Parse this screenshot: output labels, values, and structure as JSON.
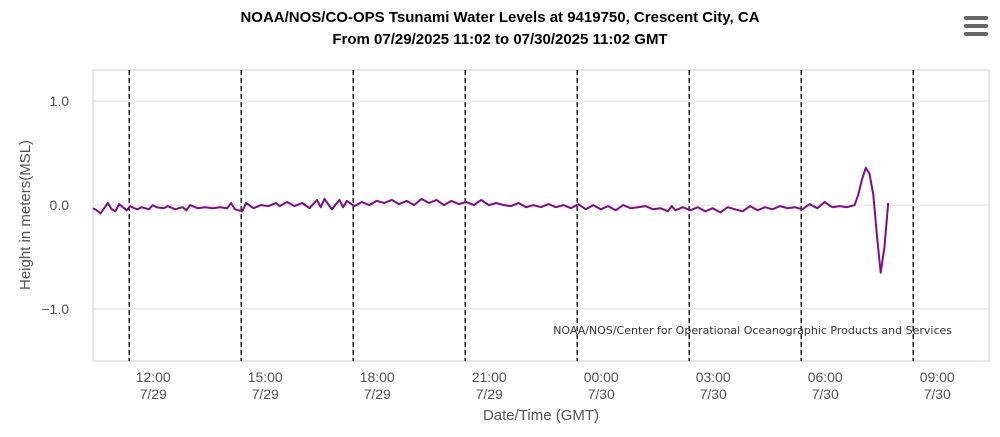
{
  "chart_data": {
    "type": "line",
    "title": "NOAA/NOS/CO-OPS Tsunami Water Levels at 9419750, Crescent City, CA",
    "subtitle": "From 07/29/2025 11:02 to 07/30/2025 11:02 GMT",
    "xlabel": "Date/Time (GMT)",
    "ylabel": "Height in meters(MSL)",
    "credit": "NOAA/NOS/Center for Operational Oceanographic Products and Services",
    "xlim_hours": [
      0,
      24
    ],
    "ylim": [
      -1.5,
      1.3
    ],
    "y_ticks": [
      {
        "value": 1.0,
        "label": "1.0"
      },
      {
        "value": 0.0,
        "label": "0.0"
      },
      {
        "value": -1.0,
        "label": "−1.0"
      }
    ],
    "x_ticks": [
      {
        "hour": 0.97,
        "time": "12:00",
        "date": "7/29"
      },
      {
        "hour": 3.97,
        "time": "15:00",
        "date": "7/29"
      },
      {
        "hour": 6.97,
        "time": "18:00",
        "date": "7/29"
      },
      {
        "hour": 9.97,
        "time": "21:00",
        "date": "7/29"
      },
      {
        "hour": 12.97,
        "time": "00:00",
        "date": "7/30"
      },
      {
        "hour": 15.97,
        "time": "03:00",
        "date": "7/30"
      },
      {
        "hour": 18.97,
        "time": "06:00",
        "date": "7/30"
      },
      {
        "hour": 21.97,
        "time": "09:00",
        "date": "7/30"
      }
    ],
    "series": [
      {
        "color": "#7b0f84",
        "points": [
          [
            0.0,
            -0.03
          ],
          [
            0.1,
            -0.05
          ],
          [
            0.2,
            -0.08
          ],
          [
            0.3,
            -0.03
          ],
          [
            0.4,
            0.02
          ],
          [
            0.5,
            -0.04
          ],
          [
            0.6,
            -0.06
          ],
          [
            0.7,
            0.01
          ],
          [
            0.8,
            -0.02
          ],
          [
            0.9,
            -0.05
          ],
          [
            1.0,
            -0.01
          ],
          [
            1.1,
            -0.03
          ],
          [
            1.2,
            -0.04
          ],
          [
            1.3,
            -0.02
          ],
          [
            1.5,
            -0.04
          ],
          [
            1.6,
            0.0
          ],
          [
            1.7,
            -0.02
          ],
          [
            1.9,
            -0.03
          ],
          [
            2.0,
            -0.01
          ],
          [
            2.2,
            -0.04
          ],
          [
            2.4,
            -0.02
          ],
          [
            2.5,
            -0.05
          ],
          [
            2.6,
            0.0
          ],
          [
            2.8,
            -0.03
          ],
          [
            3.0,
            -0.02
          ],
          [
            3.2,
            -0.03
          ],
          [
            3.4,
            -0.02
          ],
          [
            3.6,
            -0.03
          ],
          [
            3.7,
            0.02
          ],
          [
            3.8,
            -0.04
          ],
          [
            4.0,
            -0.06
          ],
          [
            4.1,
            0.02
          ],
          [
            4.3,
            -0.03
          ],
          [
            4.5,
            0.0
          ],
          [
            4.7,
            -0.01
          ],
          [
            4.9,
            0.02
          ],
          [
            5.0,
            -0.01
          ],
          [
            5.2,
            0.03
          ],
          [
            5.4,
            -0.01
          ],
          [
            5.6,
            0.02
          ],
          [
            5.8,
            -0.03
          ],
          [
            6.0,
            0.05
          ],
          [
            6.1,
            -0.02
          ],
          [
            6.2,
            0.06
          ],
          [
            6.4,
            -0.04
          ],
          [
            6.6,
            0.05
          ],
          [
            6.7,
            -0.02
          ],
          [
            6.8,
            0.04
          ],
          [
            7.0,
            -0.01
          ],
          [
            7.2,
            0.03
          ],
          [
            7.4,
            0.0
          ],
          [
            7.6,
            0.04
          ],
          [
            7.8,
            0.02
          ],
          [
            8.0,
            0.05
          ],
          [
            8.2,
            0.01
          ],
          [
            8.4,
            0.04
          ],
          [
            8.6,
            0.0
          ],
          [
            8.8,
            0.06
          ],
          [
            9.0,
            0.02
          ],
          [
            9.2,
            0.05
          ],
          [
            9.4,
            0.0
          ],
          [
            9.6,
            0.04
          ],
          [
            9.8,
            0.01
          ],
          [
            10.0,
            0.03
          ],
          [
            10.2,
            0.0
          ],
          [
            10.4,
            0.05
          ],
          [
            10.6,
            0.0
          ],
          [
            10.8,
            0.02
          ],
          [
            11.0,
            0.0
          ],
          [
            11.2,
            -0.01
          ],
          [
            11.4,
            0.02
          ],
          [
            11.6,
            -0.02
          ],
          [
            11.8,
            0.0
          ],
          [
            12.0,
            -0.02
          ],
          [
            12.2,
            0.01
          ],
          [
            12.4,
            -0.02
          ],
          [
            12.6,
            0.0
          ],
          [
            12.8,
            -0.03
          ],
          [
            13.0,
            0.01
          ],
          [
            13.2,
            -0.04
          ],
          [
            13.4,
            0.0
          ],
          [
            13.6,
            -0.04
          ],
          [
            13.8,
            -0.01
          ],
          [
            14.0,
            -0.05
          ],
          [
            14.2,
            0.0
          ],
          [
            14.4,
            -0.03
          ],
          [
            14.6,
            -0.02
          ],
          [
            14.8,
            -0.01
          ],
          [
            15.0,
            -0.04
          ],
          [
            15.2,
            -0.03
          ],
          [
            15.4,
            -0.06
          ],
          [
            15.5,
            -0.01
          ],
          [
            15.6,
            -0.05
          ],
          [
            15.8,
            -0.02
          ],
          [
            16.0,
            -0.05
          ],
          [
            16.2,
            -0.02
          ],
          [
            16.4,
            -0.06
          ],
          [
            16.6,
            -0.03
          ],
          [
            16.8,
            -0.07
          ],
          [
            17.0,
            -0.02
          ],
          [
            17.2,
            -0.04
          ],
          [
            17.4,
            -0.06
          ],
          [
            17.6,
            -0.01
          ],
          [
            17.8,
            -0.05
          ],
          [
            18.0,
            -0.02
          ],
          [
            18.2,
            -0.04
          ],
          [
            18.4,
            -0.01
          ],
          [
            18.6,
            -0.03
          ],
          [
            18.8,
            -0.02
          ],
          [
            19.0,
            -0.04
          ],
          [
            19.2,
            0.01
          ],
          [
            19.4,
            -0.03
          ],
          [
            19.6,
            0.03
          ],
          [
            19.8,
            -0.02
          ],
          [
            20.0,
            -0.01
          ],
          [
            20.2,
            -0.02
          ],
          [
            20.4,
            0.0
          ],
          [
            20.5,
            0.1
          ],
          [
            20.6,
            0.25
          ],
          [
            20.7,
            0.36
          ],
          [
            20.8,
            0.3
          ],
          [
            20.9,
            0.1
          ],
          [
            21.0,
            -0.3
          ],
          [
            21.1,
            -0.65
          ],
          [
            21.2,
            -0.4
          ],
          [
            21.3,
            0.02
          ]
        ]
      }
    ]
  }
}
